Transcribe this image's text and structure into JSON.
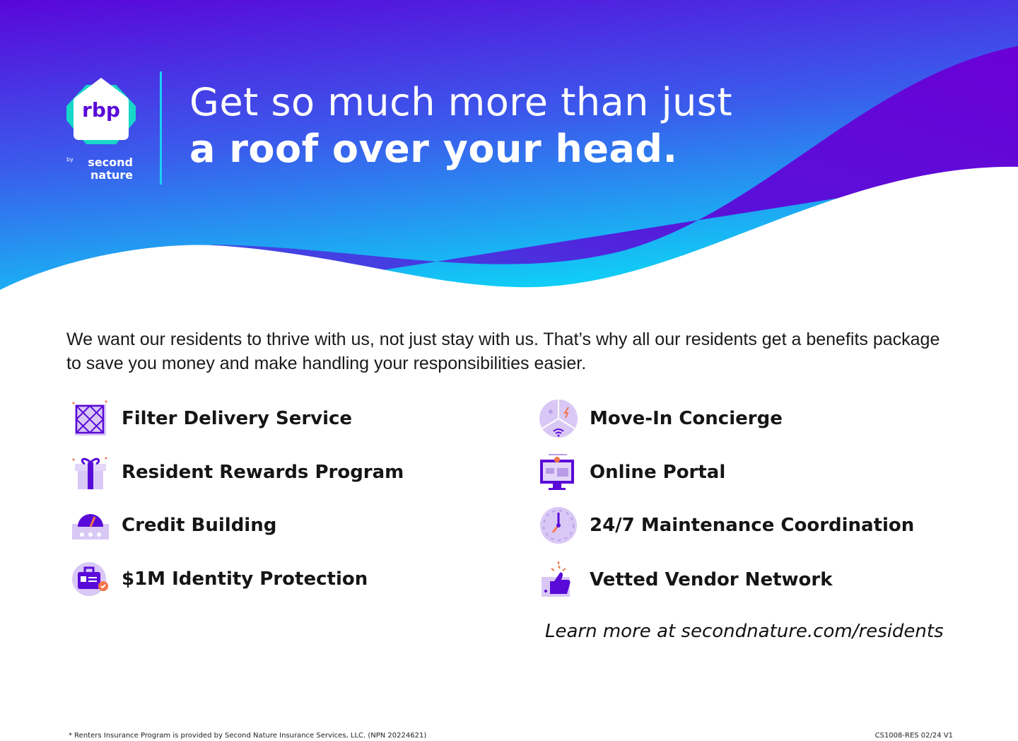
{
  "logo": {
    "brand": "rbp",
    "by": "by",
    "company_line1": "second",
    "company_line2": "nature"
  },
  "headline": {
    "line1": "Get so much more than just",
    "line2": "a roof over your head."
  },
  "intro": "We want our residents to thrive with us, not just stay with us. That’s why all our residents get a benefits package to save you money and make handling your responsibilities easier.",
  "benefits_left": [
    {
      "label": "Filter Delivery Service",
      "icon": "air-filter-icon"
    },
    {
      "label": "Resident Rewards Program",
      "icon": "gift-icon"
    },
    {
      "label": "Credit Building",
      "icon": "credit-gauge-icon"
    },
    {
      "label": "$1M Identity Protection",
      "icon": "id-badge-icon"
    }
  ],
  "benefits_right": [
    {
      "label": "Move-In Concierge",
      "icon": "utilities-icon"
    },
    {
      "label": "Online Portal",
      "icon": "computer-icon"
    },
    {
      "label": "24/7 Maintenance Coordination",
      "icon": "clock-icon"
    },
    {
      "label": "Vetted Vendor Network",
      "icon": "thumbs-up-icon"
    }
  ],
  "learn_more": "Learn more at secondnature.com/residents",
  "footer": {
    "disclaimer": "* Renters Insurance Program is provided by Second Nature Insurance Services, LLC. (NPN 20224621)",
    "code": "CS1008-RES 02/24 V1"
  },
  "colors": {
    "purple": "#5a0ad8",
    "cyan": "#14c6f4",
    "accent_orange": "#f2764b"
  }
}
